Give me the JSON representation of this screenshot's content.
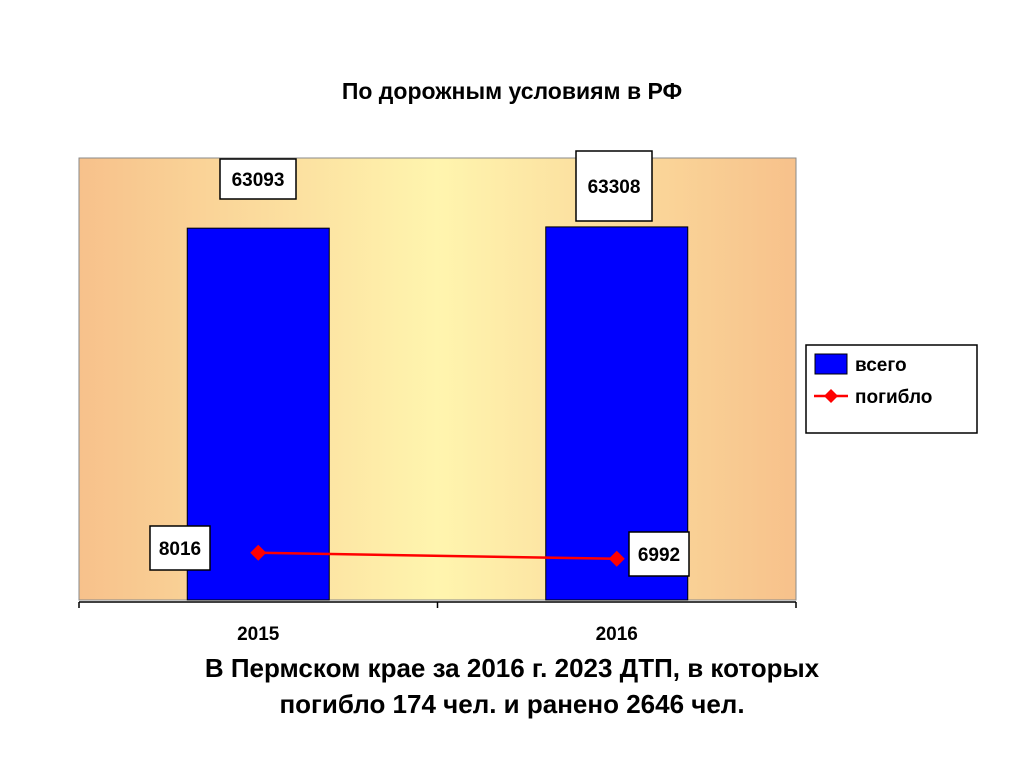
{
  "chart_data": {
    "type": "bar",
    "title": "По дорожным условиям в РФ",
    "categories": [
      "2015",
      "2016"
    ],
    "series": [
      {
        "name": "всего",
        "kind": "bar",
        "color": "#0000FF",
        "values": [
          63093,
          63308
        ],
        "labels": [
          "63093",
          "63308"
        ]
      },
      {
        "name": "погибло",
        "kind": "line",
        "color": "#FF0000",
        "values": [
          8016,
          6992
        ],
        "labels": [
          "8016",
          "6992"
        ]
      }
    ],
    "ylim": [
      0,
      75000
    ],
    "y_axis_visible": false,
    "legend_position": "right",
    "plot_background": "peach-to-yellow gradient"
  },
  "caption": {
    "line1": "В Пермском крае за 2016 г. 2023 ДТП, в которых",
    "line2": "погибло 174 чел. и ранено 2646 чел."
  }
}
